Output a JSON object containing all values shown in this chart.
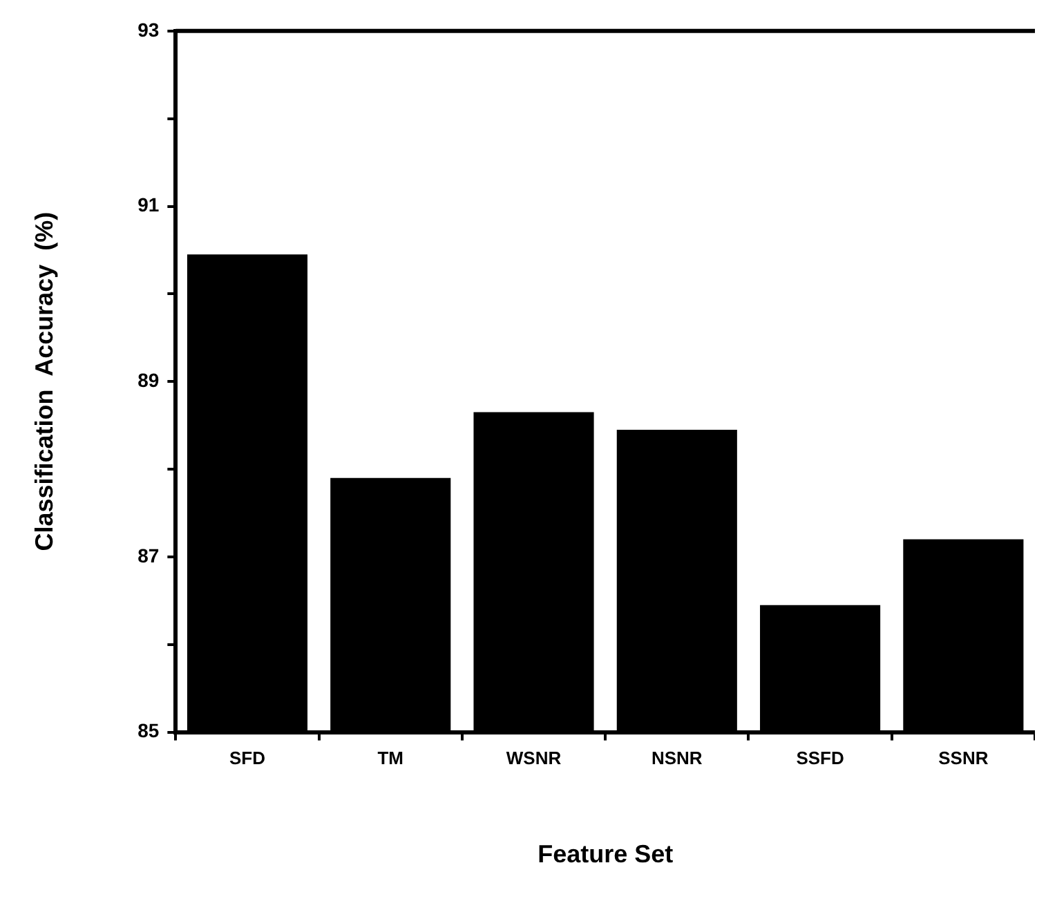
{
  "chart_data": {
    "type": "bar",
    "xlabel": "Feature Set",
    "ylabel": "Classification  Accuracy  (%)",
    "categories": [
      "SFD",
      "TM",
      "WSNR",
      "NSNR",
      "SSFD",
      "SSNR"
    ],
    "series": [
      {
        "color": "#000000",
        "values": [
          90.45,
          87.9,
          88.65,
          88.45,
          86.45,
          87.2
        ]
      }
    ],
    "ylim": [
      85,
      93
    ],
    "yticks": [
      85,
      {
        "value": 86,
        "label": null
      },
      87,
      {
        "value": 88,
        "label": null
      },
      89,
      {
        "value": 90,
        "label": null
      },
      91,
      {
        "value": 92,
        "label": null
      },
      93
    ],
    "grid": false,
    "legend": false
  }
}
